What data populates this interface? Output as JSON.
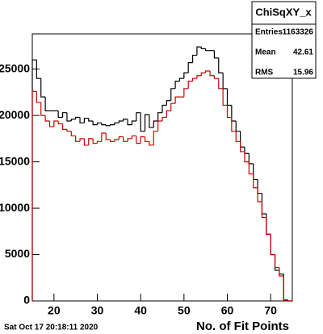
{
  "chart_data": {
    "type": "histogram",
    "x_label": "No. of Fit Points",
    "timestamp": "Sat Oct 17 20:18:11 2020",
    "bins": [
      15,
      16,
      17,
      18,
      19,
      20,
      21,
      22,
      23,
      24,
      25,
      26,
      27,
      28,
      29,
      30,
      31,
      32,
      33,
      34,
      35,
      36,
      37,
      38,
      39,
      40,
      41,
      42,
      43,
      44,
      45,
      46,
      47,
      48,
      49,
      50,
      51,
      52,
      53,
      54,
      55,
      56,
      57,
      58,
      59,
      60,
      61,
      62,
      63,
      64,
      65,
      66,
      67,
      68,
      69,
      70,
      71,
      72,
      73,
      74,
      75
    ],
    "series": [
      {
        "color": "#000000",
        "values": [
          26000,
          24000,
          22000,
          20500,
          20500,
          20500,
          19800,
          20300,
          19400,
          19600,
          19800,
          19200,
          19700,
          19400,
          19000,
          19200,
          19000,
          18900,
          19000,
          19200,
          19400,
          19600,
          19000,
          19400,
          20300,
          18300,
          20100,
          18700,
          19400,
          20300,
          21100,
          21600,
          22900,
          23700,
          24000,
          24600,
          25700,
          26500,
          27400,
          27200,
          27000,
          27000,
          26200,
          24600,
          22900,
          21100,
          19400,
          18300,
          16600,
          15900,
          14800,
          13100,
          11600,
          9400,
          7200,
          5000,
          3300,
          2900,
          100,
          0
        ]
      },
      {
        "color": "#cc0000",
        "values": [
          22600,
          21400,
          20000,
          19400,
          18800,
          19400,
          19100,
          18500,
          18300,
          17800,
          17200,
          17500,
          16800,
          17500,
          17000,
          17200,
          18100,
          17400,
          17200,
          17400,
          17700,
          17200,
          17500,
          17800,
          17000,
          17700,
          17200,
          16800,
          18300,
          19400,
          19800,
          20500,
          21300,
          22000,
          22000,
          22900,
          23700,
          24000,
          24300,
          24600,
          24800,
          24300,
          24000,
          22900,
          21100,
          19800,
          18300,
          17200,
          16100,
          15000,
          13700,
          12200,
          10700,
          9000,
          7200,
          5000,
          3600,
          2700,
          0,
          0
        ]
      }
    ],
    "xlim": [
      15,
      75
    ],
    "xticks": [
      20,
      30,
      40,
      50,
      60,
      70
    ],
    "ylim": [
      0,
      28800
    ],
    "yticks": [
      0,
      5000,
      10000,
      15000,
      20000,
      25000
    ],
    "stats_box": {
      "title": "ChiSqXY_x",
      "rows": [
        {
          "label": "Entries",
          "value": 1163326
        },
        {
          "label": "Mean",
          "value": 42.61
        },
        {
          "label": "RMS",
          "value": 15.96
        }
      ]
    }
  }
}
